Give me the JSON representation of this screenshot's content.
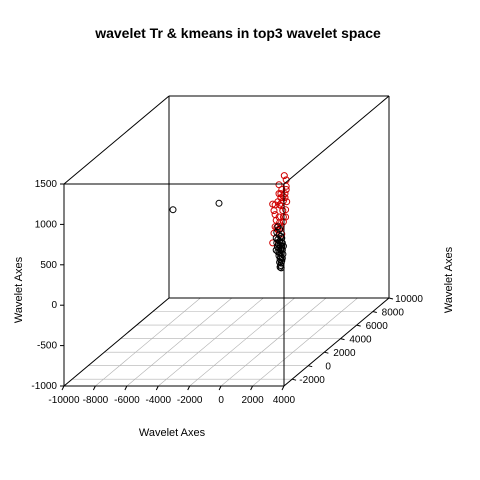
{
  "chart_data": {
    "type": "scatter",
    "title": "wavelet Tr & kmeans in top3 wavelet space",
    "x_axis": {
      "label": "Wavelet Axes",
      "range": [
        -10000,
        4000
      ],
      "ticks": [
        -10000,
        -8000,
        -6000,
        -4000,
        -2000,
        0,
        2000,
        4000
      ]
    },
    "y_axis": {
      "label": "Wavelet Axes",
      "range": [
        -3000,
        10000
      ],
      "ticks": [
        -2000,
        0,
        2000,
        4000,
        6000,
        8000,
        10000
      ]
    },
    "z_axis": {
      "label": "Wavelet Axes",
      "range": [
        -1000,
        1500
      ],
      "ticks": [
        -1000,
        -500,
        0,
        500,
        1000,
        1500
      ]
    },
    "grid": true,
    "series": [
      {
        "color": "#d00000",
        "points": [
          [
            2474,
            0,
            1353
          ],
          [
            2600,
            0,
            1300
          ],
          [
            2140,
            0,
            1240
          ],
          [
            2600,
            0,
            1220
          ],
          [
            2600,
            0,
            1180
          ],
          [
            2321,
            0,
            1180
          ],
          [
            2140,
            0,
            1130
          ],
          [
            2260,
            0,
            1130
          ],
          [
            2520,
            0,
            1130
          ],
          [
            2400,
            0,
            1100
          ],
          [
            2260,
            0,
            1080
          ],
          [
            2520,
            0,
            1080
          ],
          [
            2070,
            0,
            1030
          ],
          [
            2280,
            0,
            1010
          ],
          [
            2420,
            0,
            1040
          ],
          [
            2630,
            0,
            1030
          ],
          [
            1740,
            0,
            1000
          ],
          [
            1890,
            0,
            990
          ],
          [
            2180,
            0,
            990
          ],
          [
            2280,
            0,
            980
          ],
          [
            2560,
            0,
            930
          ],
          [
            1820,
            0,
            920
          ],
          [
            2380,
            0,
            920
          ],
          [
            1890,
            0,
            870
          ],
          [
            2140,
            0,
            840
          ],
          [
            2420,
            0,
            840
          ],
          [
            2560,
            0,
            840
          ],
          [
            1960,
            0,
            800
          ],
          [
            2180,
            0,
            770
          ],
          [
            2420,
            0,
            780
          ],
          [
            2280,
            0,
            730
          ],
          [
            1890,
            0,
            720
          ],
          [
            2000,
            0,
            710
          ],
          [
            2070,
            0,
            680
          ],
          [
            2250,
            0,
            700
          ],
          [
            1820,
            0,
            640
          ],
          [
            2320,
            0,
            630
          ],
          [
            1740,
            0,
            520
          ]
        ]
      },
      {
        "color": "#000000",
        "points": [
          [
            -4607,
            0,
            930
          ],
          [
            -1680,
            0,
            1010
          ],
          [
            2070,
            0,
            720
          ],
          [
            2180,
            0,
            690
          ],
          [
            2000,
            0,
            650
          ],
          [
            2140,
            0,
            620
          ],
          [
            2250,
            0,
            600
          ],
          [
            2320,
            0,
            580
          ],
          [
            1960,
            0,
            580
          ],
          [
            2070,
            0,
            560
          ],
          [
            2180,
            0,
            540
          ],
          [
            2280,
            0,
            530
          ],
          [
            2350,
            0,
            520
          ],
          [
            2000,
            0,
            520
          ],
          [
            2100,
            0,
            500
          ],
          [
            2210,
            0,
            490
          ],
          [
            2320,
            0,
            480
          ],
          [
            2420,
            0,
            480
          ],
          [
            2040,
            0,
            470
          ],
          [
            2140,
            0,
            450
          ],
          [
            2250,
            0,
            440
          ],
          [
            2350,
            0,
            430
          ],
          [
            1960,
            0,
            430
          ],
          [
            2070,
            0,
            410
          ],
          [
            2180,
            0,
            400
          ],
          [
            2280,
            0,
            390
          ],
          [
            2390,
            0,
            380
          ],
          [
            2140,
            0,
            360
          ],
          [
            2250,
            0,
            350
          ],
          [
            2350,
            0,
            330
          ],
          [
            2210,
            0,
            320
          ],
          [
            2320,
            0,
            300
          ],
          [
            2180,
            0,
            280
          ],
          [
            2280,
            0,
            270
          ],
          [
            2250,
            0,
            240
          ],
          [
            2210,
            0,
            220
          ],
          [
            2280,
            0,
            210
          ]
        ]
      }
    ]
  }
}
